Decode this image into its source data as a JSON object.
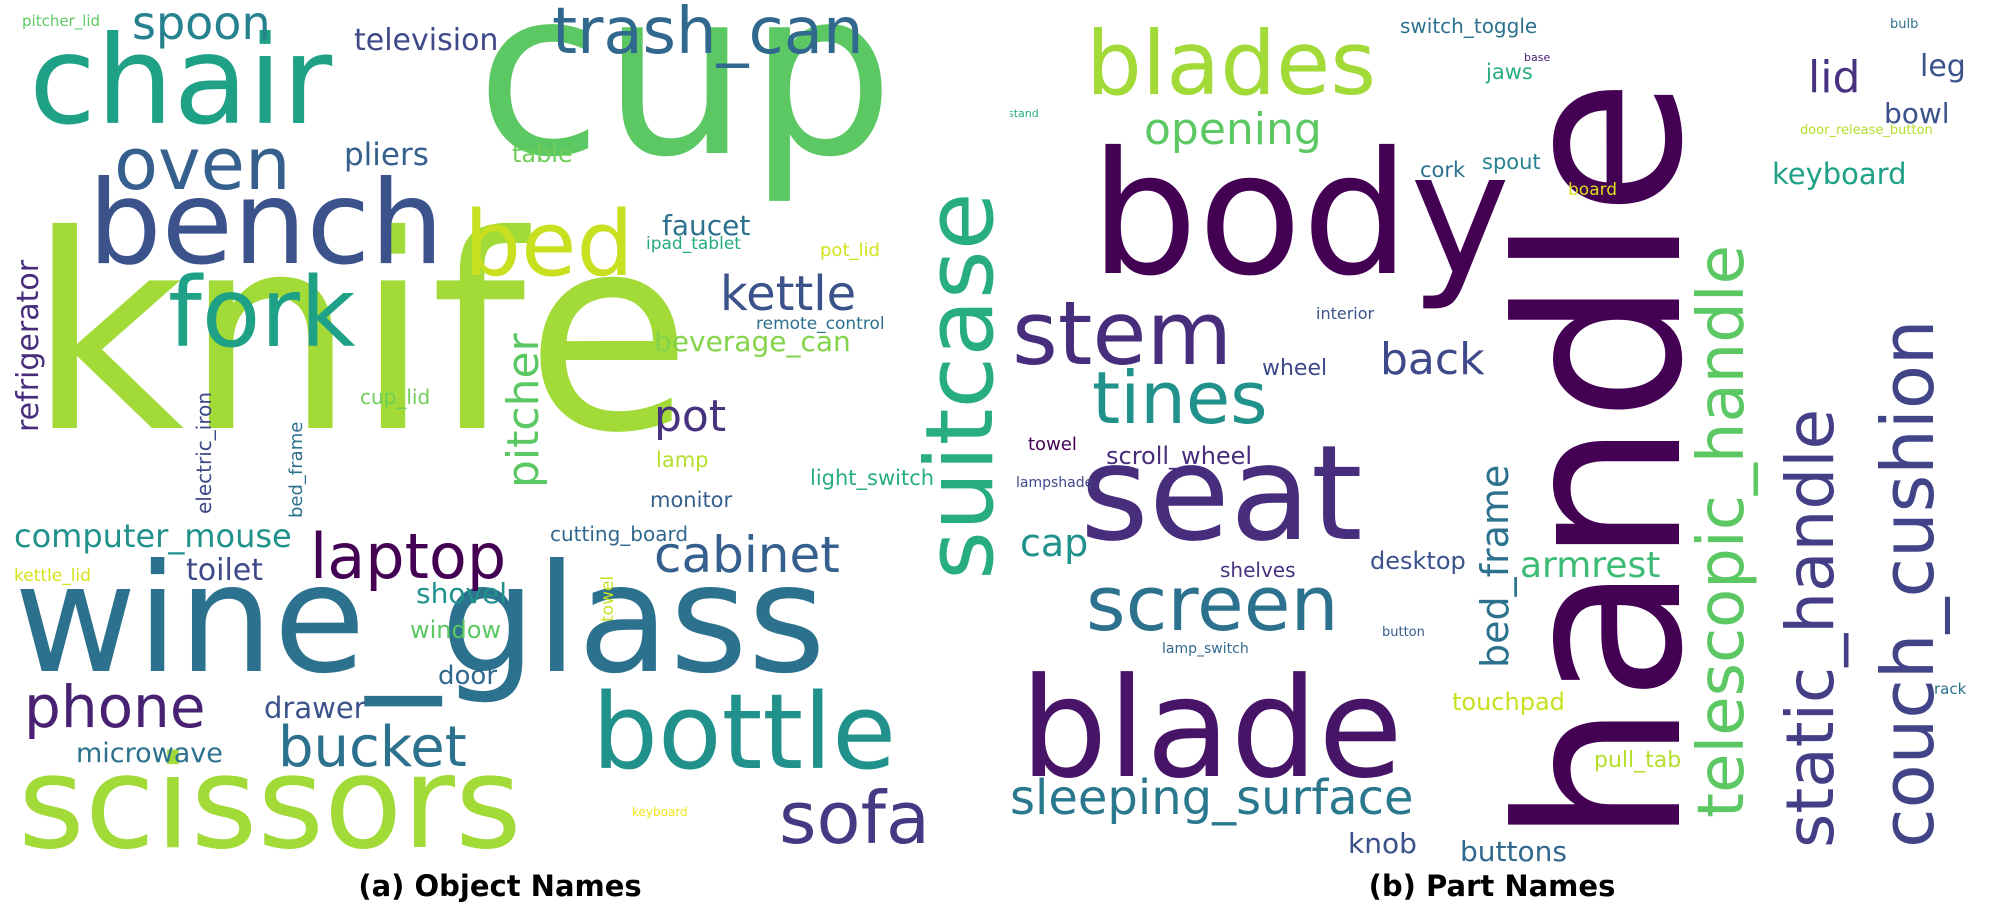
{
  "clouds": [
    {
      "caption": "(a) Object Names",
      "words": [
        {
          "text": "knife",
          "color": "#a2da37"
        },
        {
          "text": "cup",
          "color": "#5cc863"
        },
        {
          "text": "wine_glass",
          "color": "#2c718e"
        },
        {
          "text": "scissors",
          "color": "#a2da37"
        },
        {
          "text": "chair",
          "color": "#1fa187"
        },
        {
          "text": "bench",
          "color": "#3b528b"
        },
        {
          "text": "bottle",
          "color": "#21918c"
        },
        {
          "text": "suitcase",
          "color": "#27ad81"
        },
        {
          "text": "fork",
          "color": "#1fa187"
        },
        {
          "text": "bed",
          "color": "#c8e020"
        },
        {
          "text": "oven",
          "color": "#355f8d"
        },
        {
          "text": "trash_can",
          "color": "#31688e"
        },
        {
          "text": "spoon",
          "color": "#26828e"
        },
        {
          "text": "laptop",
          "color": "#440154"
        },
        {
          "text": "sofa",
          "color": "#443983"
        },
        {
          "text": "phone",
          "color": "#482173"
        },
        {
          "text": "bucket",
          "color": "#2c718e"
        },
        {
          "text": "cabinet",
          "color": "#355f8d"
        },
        {
          "text": "kettle",
          "color": "#3b528b"
        },
        {
          "text": "pot",
          "color": "#46327e"
        },
        {
          "text": "pitcher",
          "color": "#5cc863"
        },
        {
          "text": "computer_mouse",
          "color": "#21918c"
        },
        {
          "text": "beverage_can",
          "color": "#84d44b"
        },
        {
          "text": "television",
          "color": "#3e4989"
        },
        {
          "text": "pliers",
          "color": "#355f8d"
        },
        {
          "text": "faucet",
          "color": "#2c718e"
        },
        {
          "text": "refrigerator",
          "color": "#472d7b"
        },
        {
          "text": "toilet",
          "color": "#3e4989"
        },
        {
          "text": "shovel",
          "color": "#21918c"
        },
        {
          "text": "microwave",
          "color": "#2c718e"
        },
        {
          "text": "drawer",
          "color": "#3b528b"
        },
        {
          "text": "door",
          "color": "#31688e"
        },
        {
          "text": "window",
          "color": "#5cc863"
        },
        {
          "text": "table",
          "color": "#6ece58"
        },
        {
          "text": "electric_iron",
          "color": "#3e4989"
        },
        {
          "text": "bed_frame",
          "color": "#2c718e"
        },
        {
          "text": "cup_lid",
          "color": "#6ece58"
        },
        {
          "text": "light_switch",
          "color": "#27ad81"
        },
        {
          "text": "monitor",
          "color": "#355f8d"
        },
        {
          "text": "lamp",
          "color": "#b5de2b"
        },
        {
          "text": "cutting_board",
          "color": "#31688e"
        },
        {
          "text": "remote_control",
          "color": "#2c718e"
        },
        {
          "text": "ipad_tablet",
          "color": "#25ab82"
        },
        {
          "text": "pot_lid",
          "color": "#d2e21b"
        },
        {
          "text": "pitcher_lid",
          "color": "#5cc863"
        },
        {
          "text": "kettle_lid",
          "color": "#d8e219"
        },
        {
          "text": "towel",
          "color": "#c8e020"
        },
        {
          "text": "keyboard",
          "color": "#f1e51d"
        }
      ]
    },
    {
      "caption": "(b) Part Names",
      "words": [
        {
          "text": "handle",
          "color": "#440154"
        },
        {
          "text": "body",
          "color": "#440154"
        },
        {
          "text": "seat",
          "color": "#472d7b"
        },
        {
          "text": "blade",
          "color": "#481467"
        },
        {
          "text": "blades",
          "color": "#a2da37"
        },
        {
          "text": "stem",
          "color": "#472d7b"
        },
        {
          "text": "screen",
          "color": "#2c718e"
        },
        {
          "text": "tines",
          "color": "#21918c"
        },
        {
          "text": "telescopic_handle",
          "color": "#5cc863"
        },
        {
          "text": "static_handle",
          "color": "#433e85"
        },
        {
          "text": "couch_cushion",
          "color": "#414487"
        },
        {
          "text": "sleeping_surface",
          "color": "#2a788e"
        },
        {
          "text": "opening",
          "color": "#5cc863"
        },
        {
          "text": "back",
          "color": "#3e4989"
        },
        {
          "text": "lid",
          "color": "#46327e"
        },
        {
          "text": "bed_frame",
          "color": "#2c718e"
        },
        {
          "text": "armrest",
          "color": "#3cbb75"
        },
        {
          "text": "cap",
          "color": "#21918c"
        },
        {
          "text": "keyboard",
          "color": "#1fa187"
        },
        {
          "text": "leg",
          "color": "#3b528b"
        },
        {
          "text": "bowl",
          "color": "#3b528b"
        },
        {
          "text": "knob",
          "color": "#3b528b"
        },
        {
          "text": "buttons",
          "color": "#31688e"
        },
        {
          "text": "touchpad",
          "color": "#c8e020"
        },
        {
          "text": "desktop",
          "color": "#3b528b"
        },
        {
          "text": "scroll_wheel",
          "color": "#472d7b"
        },
        {
          "text": "wheel",
          "color": "#3e4989"
        },
        {
          "text": "pull_tab",
          "color": "#b5de2b"
        },
        {
          "text": "shelves",
          "color": "#46327e"
        },
        {
          "text": "jaws",
          "color": "#27ad81"
        },
        {
          "text": "switch_toggle",
          "color": "#2c718e"
        },
        {
          "text": "cork",
          "color": "#2c718e"
        },
        {
          "text": "spout",
          "color": "#26828e"
        },
        {
          "text": "board",
          "color": "#d8e219"
        },
        {
          "text": "towel",
          "color": "#440154"
        },
        {
          "text": "interior",
          "color": "#3b528b"
        },
        {
          "text": "lampshade",
          "color": "#3e4989"
        },
        {
          "text": "lamp_switch",
          "color": "#31688e"
        },
        {
          "text": "button",
          "color": "#355f8d"
        },
        {
          "text": "rack",
          "color": "#2c718e"
        },
        {
          "text": "bulb",
          "color": "#2c718e"
        },
        {
          "text": "base",
          "color": "#482173"
        },
        {
          "text": "stand",
          "color": "#25ab82"
        },
        {
          "text": "door_release_button",
          "color": "#b5de2b"
        }
      ]
    }
  ]
}
